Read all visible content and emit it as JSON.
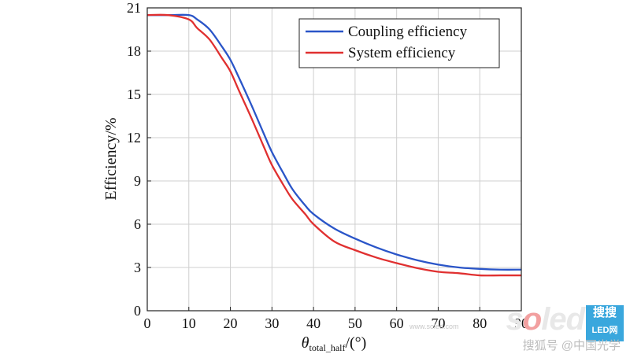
{
  "chart_data": {
    "type": "line",
    "title": "",
    "xlabel_symbol": "θ",
    "xlabel_sub": "total_half",
    "xlabel_unit": "/(°)",
    "ylabel": "Efficiency/%",
    "xlim": [
      0,
      90
    ],
    "ylim": [
      0,
      21
    ],
    "xticks": [
      0,
      10,
      20,
      30,
      40,
      50,
      60,
      70,
      80,
      90
    ],
    "yticks": [
      0,
      3,
      6,
      9,
      12,
      15,
      18,
      21
    ],
    "grid": true,
    "legend_position": "top-right",
    "series": [
      {
        "name": "Coupling efficiency",
        "color": "#2a55c8",
        "x": [
          0,
          5,
          10,
          12,
          15,
          18,
          20,
          22,
          25,
          28,
          30,
          33,
          35,
          38,
          40,
          45,
          50,
          55,
          60,
          65,
          70,
          75,
          80,
          85,
          90
        ],
        "y": [
          20.5,
          20.5,
          20.5,
          20.2,
          19.5,
          18.3,
          17.4,
          16.2,
          14.3,
          12.3,
          11.0,
          9.4,
          8.4,
          7.3,
          6.7,
          5.7,
          5.0,
          4.4,
          3.9,
          3.5,
          3.2,
          3.0,
          2.9,
          2.85,
          2.85
        ]
      },
      {
        "name": "System efficiency",
        "color": "#e03030",
        "x": [
          0,
          5,
          10,
          12,
          15,
          18,
          20,
          22,
          25,
          28,
          30,
          33,
          35,
          38,
          40,
          45,
          50,
          55,
          60,
          65,
          70,
          75,
          80,
          85,
          90
        ],
        "y": [
          20.5,
          20.5,
          20.2,
          19.6,
          18.8,
          17.5,
          16.6,
          15.3,
          13.4,
          11.4,
          10.1,
          8.6,
          7.7,
          6.7,
          6.0,
          4.8,
          4.2,
          3.7,
          3.3,
          2.95,
          2.7,
          2.6,
          2.45,
          2.45,
          2.45
        ]
      }
    ]
  },
  "watermark": {
    "logo_s": "s",
    "logo_o": "o",
    "logo_rest": "led",
    "box_top": "搜搜",
    "box_bottom": "LED网",
    "url": "www.soled.com",
    "bottom_text": "搜狐号 @中国光学"
  }
}
